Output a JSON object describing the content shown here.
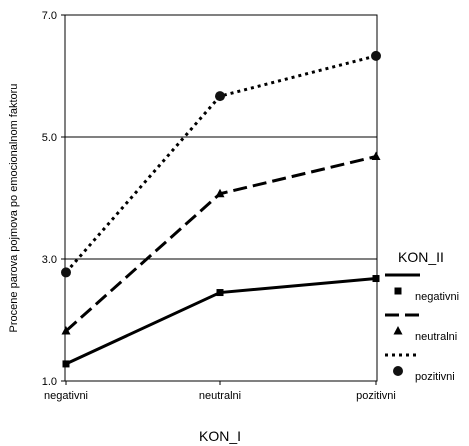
{
  "chart_data": {
    "type": "line",
    "categories": [
      "negativni",
      "neutralni",
      "pozitivni"
    ],
    "ylim": [
      1.0,
      7.0
    ],
    "yticks": [
      "1.0",
      "3.0",
      "5.0",
      "7.0"
    ],
    "grid": true,
    "xlabel": "KON_I",
    "ylabel": "Procene parova pojmova po emocionalnom faktoru",
    "legend": {
      "title": "KON_II",
      "placement": "right"
    },
    "series": [
      {
        "name": "negativni",
        "values": [
          1.28,
          2.45,
          2.68
        ],
        "line": "solid",
        "marker": "square",
        "color": "#000000"
      },
      {
        "name": "neutralni",
        "values": [
          1.82,
          4.07,
          4.68
        ],
        "line": "dashed",
        "marker": "triangle",
        "color": "#000000"
      },
      {
        "name": "pozitivni",
        "values": [
          2.78,
          5.67,
          6.33
        ],
        "line": "dotted",
        "marker": "circle",
        "color": "#000000"
      }
    ]
  }
}
